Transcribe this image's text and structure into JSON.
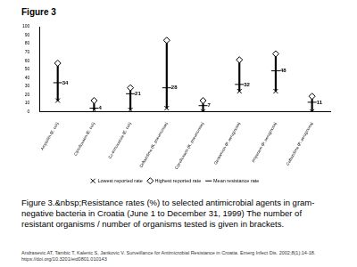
{
  "chart_data": {
    "type": "range",
    "title": "Figure 3",
    "categories": [
      "Ampicillin (E. coli)",
      "Ciprofloxacin (E. coli)",
      "Co-trimoxazole (E. coli)",
      "Ceftazidime (K. pneumoniae)",
      "Ciprofloxacin (K. pneumoniae)",
      "Gentamicin (P. aeruginosa)",
      "Imipenem (P. aeruginosa)",
      "Ceftazidime (P. aeruginosa)"
    ],
    "series": [
      {
        "name": "Lowest reported rate",
        "color": "#000000",
        "marker": "x",
        "values": [
          13,
          2,
          2,
          4,
          0,
          24,
          24,
          0
        ]
      },
      {
        "name": "Highest reported rate",
        "color": "#000000",
        "marker": "diamond",
        "values": [
          57,
          13,
          28,
          84,
          13,
          61,
          68,
          18
        ]
      },
      {
        "name": "Mean resistance rate",
        "color": "#000000",
        "marker": "dash",
        "data_labels": true,
        "values": [
          34,
          4,
          21,
          28,
          7,
          32,
          48,
          11
        ]
      }
    ],
    "ylim": [
      0,
      100
    ],
    "yticks": [
      0,
      10,
      20,
      30,
      40,
      50,
      60,
      70,
      80,
      90,
      100
    ],
    "grid": false,
    "legend": "bottom",
    "annotations": [
      "Figure 3.&nbsp;Resistance rates (%) to selected antimicrobial agents in gram-negative bacteria in Croatia (June 1 to December 31, 1999) The number of resistant organisms / number of organisms tested is given in brackets.",
      "Andrasevic AT, Tambic T, Kalenic S, Jankovic V. Surveillance for Antimicrobial Resistance in Croatia. Emerg Infect Dis. 2002;8(1):14-18. https://doi.org/10.3201/eid0801.010143"
    ]
  }
}
